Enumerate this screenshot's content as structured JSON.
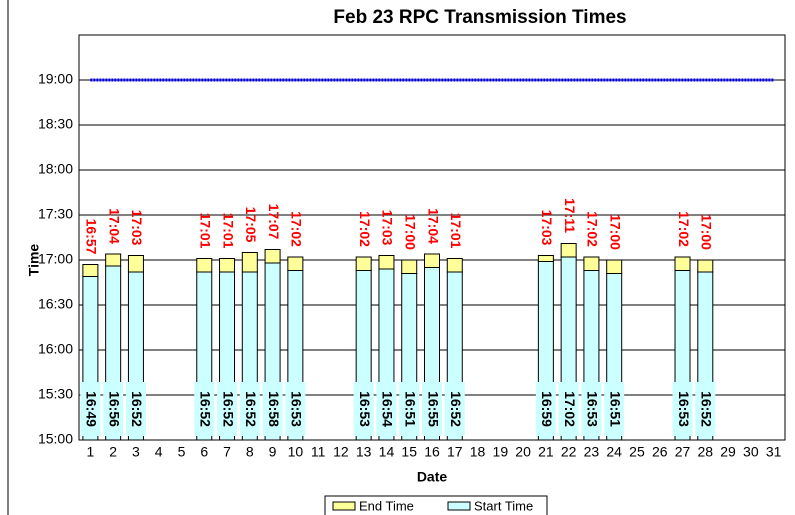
{
  "chart_data": {
    "type": "floating_bar",
    "title": "Feb 23 RPC Transmission Times",
    "x_label": "Date",
    "y_label": "Time",
    "categories": [
      "1",
      "2",
      "3",
      "4",
      "5",
      "6",
      "7",
      "8",
      "9",
      "10",
      "11",
      "12",
      "13",
      "14",
      "15",
      "16",
      "17",
      "18",
      "19",
      "20",
      "21",
      "22",
      "23",
      "24",
      "25",
      "26",
      "27",
      "28",
      "29",
      "30",
      "31"
    ],
    "series": [
      {
        "name": "Start Time",
        "color": "#ccffff",
        "values": [
          1009,
          1016,
          1012,
          null,
          null,
          1012,
          1012,
          1012,
          1018,
          1013,
          null,
          null,
          1013,
          1014,
          1011,
          1015,
          1012,
          null,
          null,
          null,
          1019,
          1022,
          1013,
          1011,
          null,
          null,
          1013,
          1012,
          null,
          null,
          null
        ],
        "value_labels": [
          "16:49",
          "16:56",
          "16:52",
          null,
          null,
          "16:52",
          "16:52",
          "16:52",
          "16:58",
          "16:53",
          null,
          null,
          "16:53",
          "16:54",
          "16:51",
          "16:55",
          "16:52",
          null,
          null,
          null,
          "16:59",
          "17:02",
          "16:53",
          "16:51",
          null,
          null,
          "16:53",
          "16:52",
          null,
          null,
          null
        ]
      },
      {
        "name": "End Time",
        "color": "#ffff99",
        "values": [
          1017,
          1024,
          1023,
          null,
          null,
          1021,
          1021,
          1025,
          1027,
          1022,
          null,
          null,
          1022,
          1023,
          1020,
          1024,
          1021,
          null,
          null,
          null,
          1023,
          1031,
          1022,
          1020,
          null,
          null,
          1022,
          1020,
          null,
          null,
          null
        ],
        "value_labels": [
          "16:57",
          "17:04",
          "17:03",
          null,
          null,
          "17:01",
          "17:01",
          "17:05",
          "17:07",
          "17:02",
          null,
          null,
          "17:02",
          "17:03",
          "17:00",
          "17:04",
          "17:01",
          null,
          null,
          null,
          "17:03",
          "17:11",
          "17:02",
          "17:00",
          null,
          null,
          "17:02",
          "17:00",
          null,
          null,
          null
        ]
      }
    ],
    "reference_value": 1140,
    "reference_color": "#0000ff",
    "ylim": [
      900,
      1170
    ],
    "yticks": [
      {
        "value": 900,
        "label": "15:00"
      },
      {
        "value": 930,
        "label": "15:30"
      },
      {
        "value": 960,
        "label": "16:00"
      },
      {
        "value": 990,
        "label": "16:30"
      },
      {
        "value": 1020,
        "label": "17:00"
      },
      {
        "value": 1050,
        "label": "17:30"
      },
      {
        "value": 1080,
        "label": "18:00"
      },
      {
        "value": 1110,
        "label": "18:30"
      },
      {
        "value": 1140,
        "label": "19:00"
      }
    ],
    "grid": true,
    "legend": "bottom"
  }
}
